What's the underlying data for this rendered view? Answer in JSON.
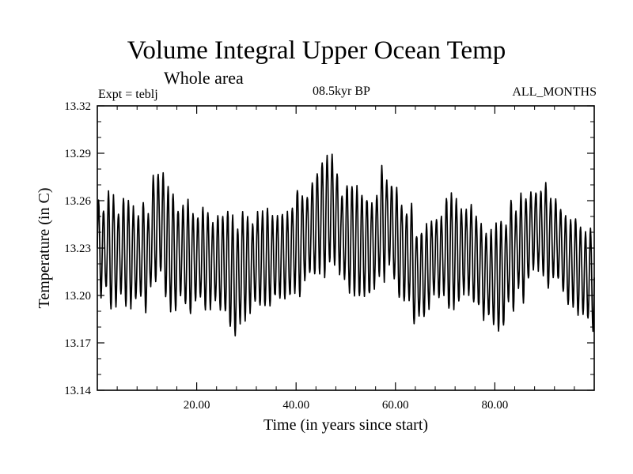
{
  "title": "Volume Integral Upper Ocean Temp",
  "subtitle": "Whole area",
  "experiment": "Expt = teblj",
  "period": "08.5kyr BP",
  "months": "ALL_MONTHS",
  "chart_data": {
    "type": "line",
    "title": "Volume Integral Upper Ocean Temp",
    "xlabel": "Time (in years since start)",
    "ylabel": "Temperature (in C)",
    "xlim": [
      0,
      100
    ],
    "ylim": [
      13.14,
      13.32
    ],
    "xticks": [
      20,
      40,
      60,
      80
    ],
    "xtick_labels": [
      "20.00",
      "40.00",
      "60.00",
      "80.00"
    ],
    "yticks": [
      13.14,
      13.17,
      13.2,
      13.23,
      13.26,
      13.29,
      13.32
    ],
    "ytick_labels": [
      "13.14",
      "13.17",
      "13.20",
      "13.23",
      "13.26",
      "13.29",
      "13.32"
    ],
    "grid": false,
    "series": [
      {
        "name": "Temperature",
        "resolution": "monthly",
        "x_start": 0,
        "x_end": 100,
        "annual_mean_keypoints": {
          "x": [
            0,
            5,
            10,
            12,
            15,
            20,
            25,
            28,
            30,
            35,
            38,
            42,
            45,
            47,
            50,
            55,
            58,
            62,
            65,
            68,
            72,
            75,
            78,
            80,
            85,
            88,
            92,
            95,
            100
          ],
          "y": [
            13.23,
            13.227,
            13.225,
            13.247,
            13.228,
            13.224,
            13.221,
            13.212,
            13.22,
            13.224,
            13.225,
            13.238,
            13.247,
            13.256,
            13.236,
            13.231,
            13.247,
            13.226,
            13.212,
            13.224,
            13.228,
            13.228,
            13.214,
            13.21,
            13.23,
            13.242,
            13.236,
            13.221,
            13.21
          ]
        },
        "seasonal_amplitude": 0.03
      }
    ]
  }
}
